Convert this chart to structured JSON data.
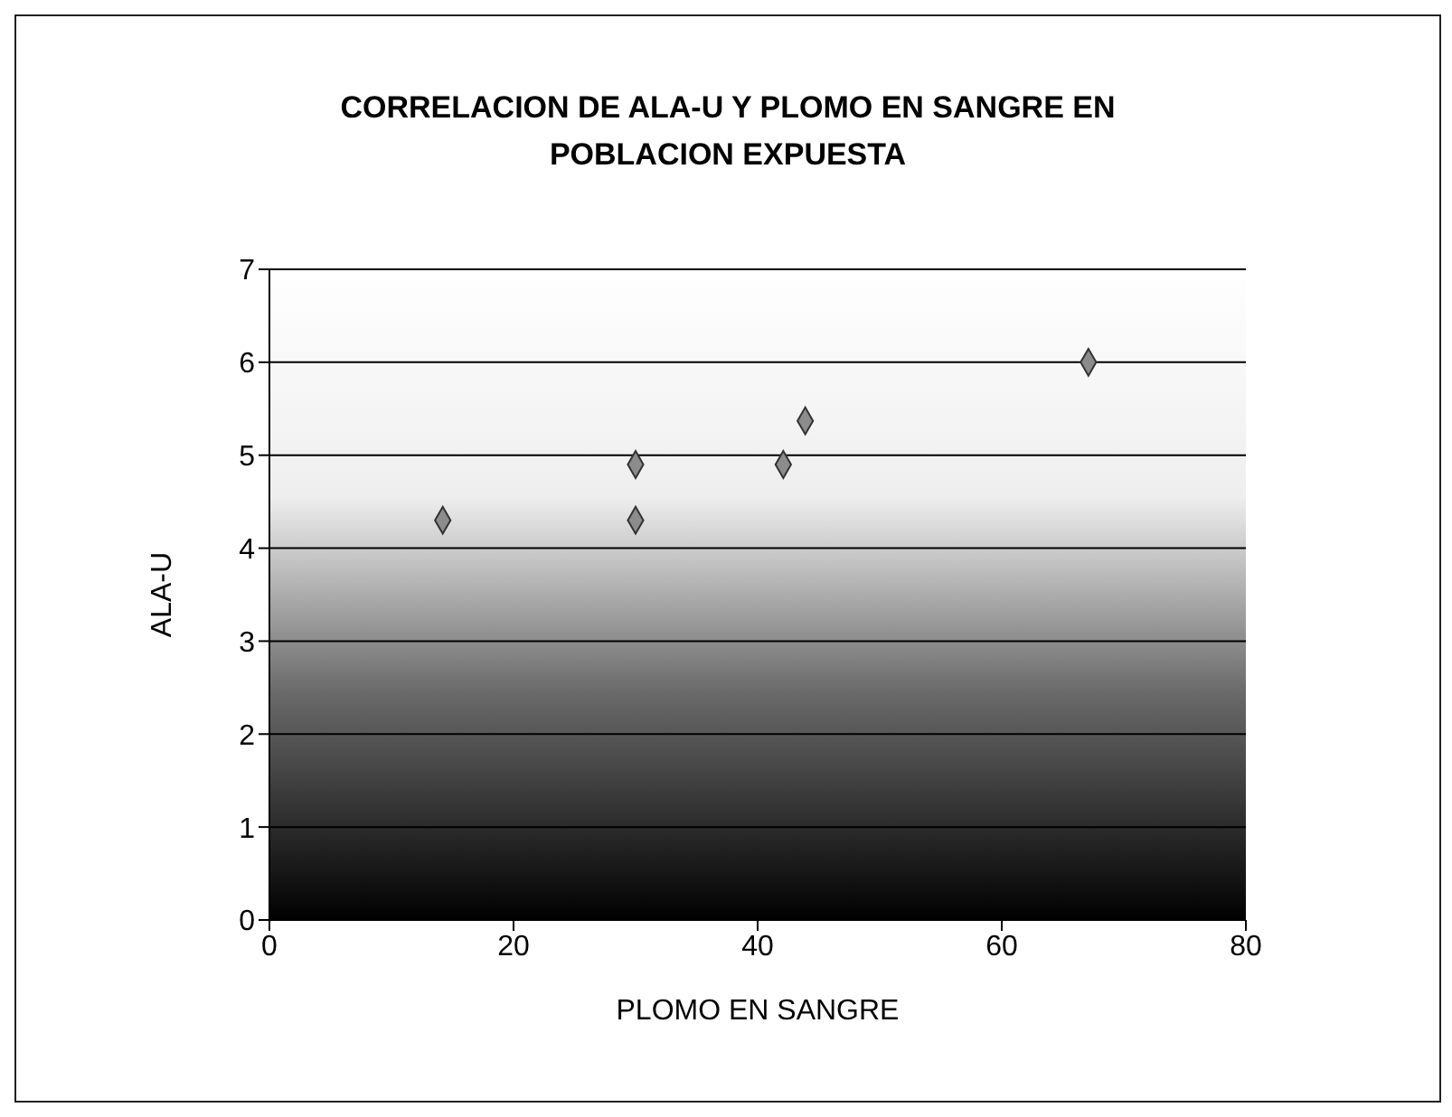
{
  "chart_data": {
    "type": "scatter",
    "title": "CORRELACION DE ALA-U Y PLOMO EN SANGRE EN POBLACION EXPUESTA",
    "xlabel": "PLOMO EN SANGRE",
    "ylabel": "ALA-U",
    "x": [
      14.2,
      30,
      30,
      42.1,
      43.9,
      67.1
    ],
    "series": [
      {
        "color": "#8c8c8c",
        "values": [
          4.3,
          4.9,
          4.3,
          4.9,
          5.37,
          6.0
        ]
      }
    ],
    "xlim": [
      0,
      80
    ],
    "xticks": [
      0,
      20,
      40,
      60,
      80
    ],
    "ylim": [
      0,
      7
    ],
    "yticks": [
      0,
      1,
      2,
      3,
      4,
      5,
      6,
      7
    ],
    "grid": "y",
    "marker": "diamond"
  }
}
